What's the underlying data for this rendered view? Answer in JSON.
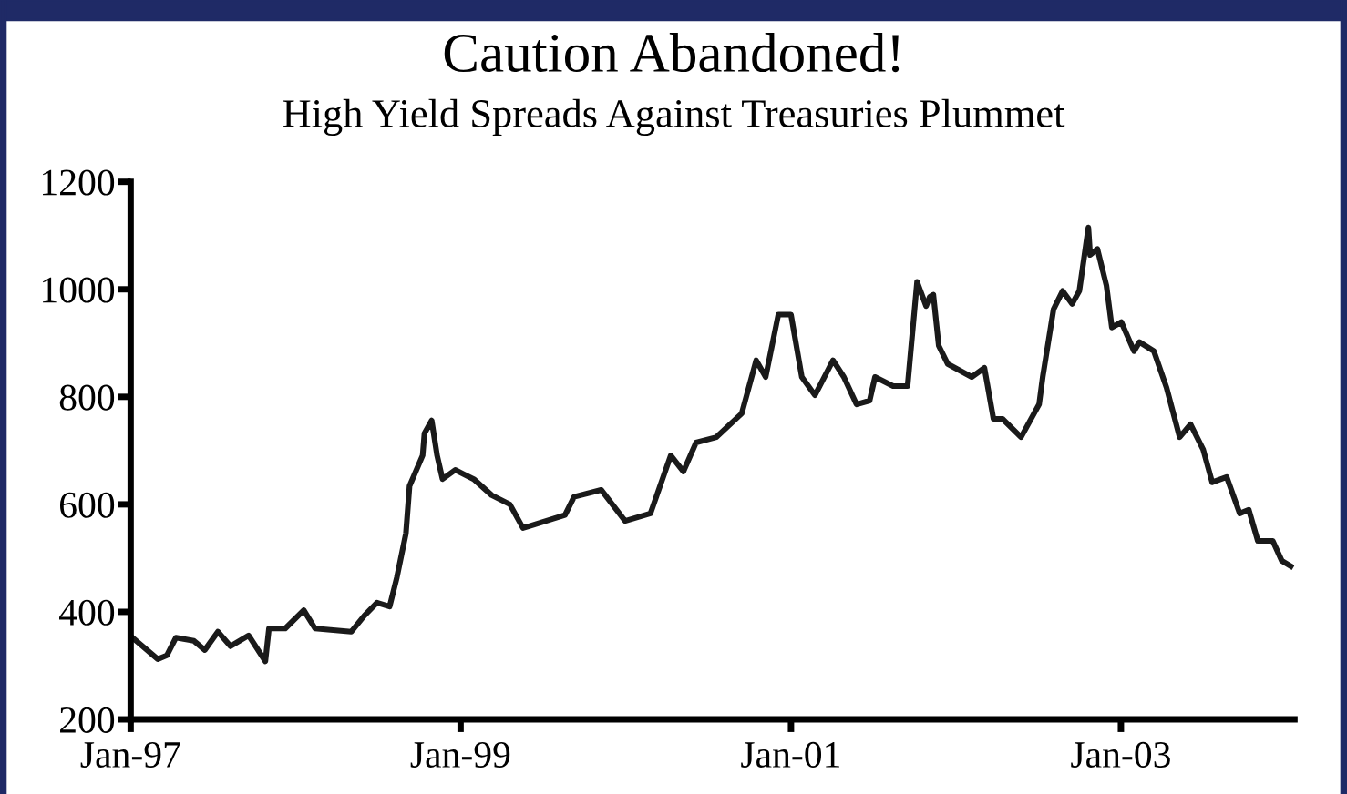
{
  "chart_data": {
    "type": "line",
    "title": "Caution Abandoned!",
    "subtitle": "High Yield Spreads Against Treasuries Plummet",
    "x": [
      "1997-01-05",
      "1997-03-02",
      "1997-03-22",
      "1997-04-11",
      "1997-05-21",
      "1997-06-14",
      "1997-07-13",
      "1997-08-10",
      "1997-09-19",
      "1997-10-26",
      "1997-11-03",
      "1997-12-09",
      "1998-01-19",
      "1998-02-13",
      "1998-05-04",
      "1998-06-02",
      "1998-06-30",
      "1998-07-28",
      "1998-08-13",
      "1998-09-02",
      "1998-09-10",
      "1998-10-09",
      "1998-10-13",
      "1998-10-29",
      "1998-11-10",
      "1998-11-22",
      "1998-12-20",
      "1999-01-30",
      "1999-03-11",
      "1999-04-20",
      "1999-05-19",
      "1999-05-31",
      "1999-08-20",
      "1999-09-09",
      "1999-11-08",
      "1999-12-31",
      "2000-02-25",
      "2000-04-10",
      "2000-05-08",
      "2000-06-05",
      "2000-07-20",
      "2000-09-14",
      "2000-10-16",
      "2000-11-06",
      "2000-12-04",
      "2001-01-01",
      "2001-01-25",
      "2001-02-23",
      "2001-04-04",
      "2001-04-28",
      "2001-05-26",
      "2001-06-24",
      "2001-07-06",
      "2001-08-15",
      "2001-09-16",
      "2001-10-07",
      "2001-10-27",
      "2001-11-04",
      "2001-11-12",
      "2001-11-24",
      "2001-12-14",
      "2002-02-05",
      "2002-03-05",
      "2002-03-25",
      "2002-04-14",
      "2002-05-25",
      "2002-07-04",
      "2002-07-12",
      "2002-08-05",
      "2002-08-25",
      "2002-09-15",
      "2002-10-01",
      "2002-10-21",
      "2002-10-25",
      "2002-11-10",
      "2002-11-30",
      "2002-12-12",
      "2003-01-02",
      "2003-01-30",
      "2003-02-11",
      "2003-03-15",
      "2003-04-12",
      "2003-05-11",
      "2003-06-04",
      "2003-07-02",
      "2003-07-22",
      "2003-08-23",
      "2003-09-21",
      "2003-10-11",
      "2003-10-31",
      "2003-12-03",
      "2003-12-23",
      "2004-01-12"
    ],
    "series": [
      {
        "color": "#1a1a1a",
        "values": [
          352,
          312,
          319,
          352,
          346,
          329,
          363,
          336,
          356,
          308,
          369,
          369,
          403,
          369,
          363,
          393,
          417,
          410,
          464,
          546,
          634,
          691,
          732,
          756,
          691,
          647,
          664,
          647,
          617,
          600,
          556,
          559,
          580,
          614,
          627,
          569,
          583,
          691,
          661,
          715,
          725,
          769,
          868,
          837,
          953,
          953,
          837,
          803,
          868,
          837,
          786,
          793,
          837,
          820,
          820,
          1014,
          969,
          986,
          990,
          895,
          861,
          837,
          854,
          759,
          759,
          725,
          786,
          837,
          963,
          997,
          973,
          997,
          1115,
          1064,
          1075,
          1007,
          929,
          939,
          885,
          902,
          885,
          817,
          725,
          749,
          702,
          641,
          651,
          583,
          590,
          532,
          532,
          495,
          485
        ]
      }
    ],
    "xlim": [
      "1997-01-01",
      "2004-01-20"
    ],
    "ylim": [
      200,
      1200
    ],
    "xticks": [
      {
        "value": "1997-01-01",
        "label": "Jan-97"
      },
      {
        "value": "1999-01-01",
        "label": "Jan-99"
      },
      {
        "value": "2001-01-01",
        "label": "Jan-01"
      },
      {
        "value": "2003-01-01",
        "label": "Jan-03"
      }
    ],
    "yticks": [
      200,
      400,
      600,
      800,
      1000,
      1200
    ],
    "grid": false,
    "legend": false,
    "marker": "none",
    "line_style": "solid"
  }
}
